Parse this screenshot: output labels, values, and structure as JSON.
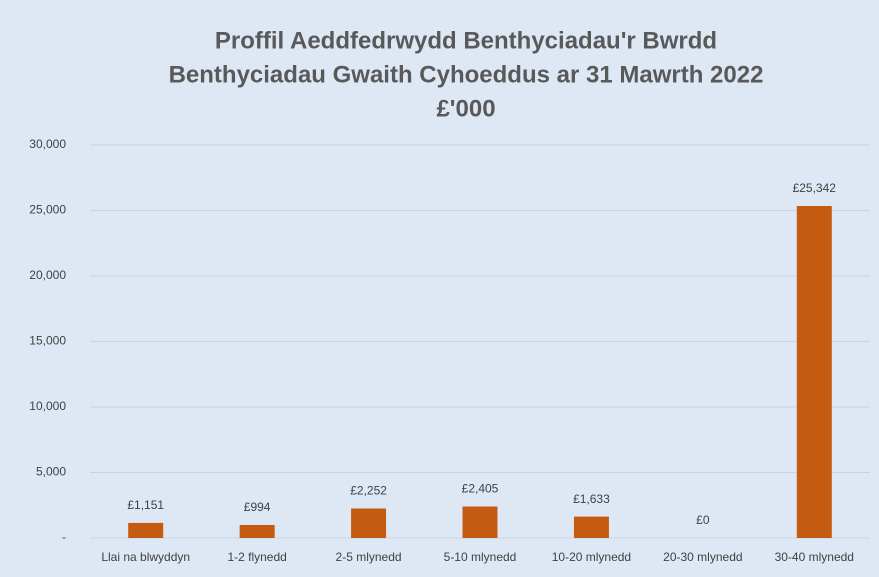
{
  "chart_data": {
    "type": "bar",
    "title": [
      "Proffil Aeddfedrwydd Benthyciadau'r Bwrdd",
      "Benthyciadau Gwaith Cyhoeddus ar 31 Mawrth 2022",
      "£'000"
    ],
    "categories": [
      "Llai na blwyddyn",
      "1-2 flynedd",
      "2-5 mlynedd",
      "5-10 mlynedd",
      "10-20 mlynedd",
      "20-30 mlynedd",
      "30-40 mlynedd"
    ],
    "values": [
      1151,
      994,
      2252,
      2405,
      1633,
      0,
      25342
    ],
    "value_labels": [
      "£1,151",
      "£994",
      "£2,252",
      "£2,405",
      "£1,633",
      "£0",
      "£25,342"
    ],
    "color": "#c55a11",
    "ylim": [
      0,
      30000
    ],
    "yticks": [
      {
        "value": 0,
        "label": "-"
      },
      {
        "value": 5000,
        "label": "5,000"
      },
      {
        "value": 10000,
        "label": "10,000"
      },
      {
        "value": 15000,
        "label": "15,000"
      },
      {
        "value": 20000,
        "label": "20,000"
      },
      {
        "value": 25000,
        "label": "25,000"
      },
      {
        "value": 30000,
        "label": "30,000"
      }
    ],
    "grid": true
  }
}
